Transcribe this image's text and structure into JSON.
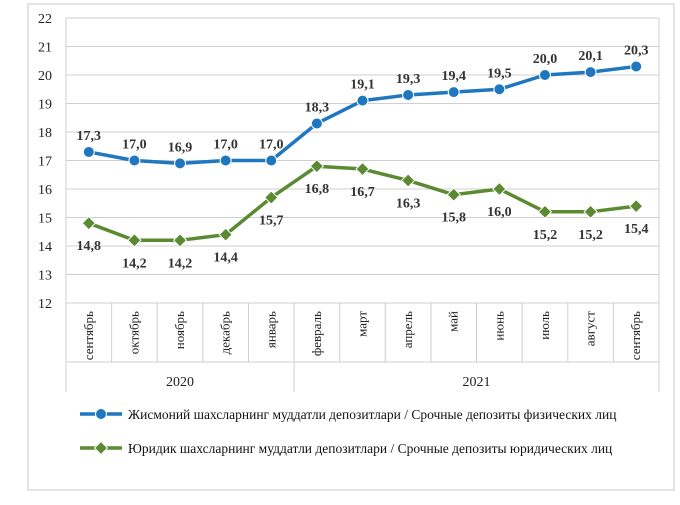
{
  "chart_data": {
    "type": "line",
    "categories": [
      "сентябрь",
      "октябрь",
      "ноябрь",
      "декабрь",
      "январь",
      "февраль",
      "март",
      "апрель",
      "май",
      "июнь",
      "июль",
      "август",
      "сентябрь"
    ],
    "year_groups": [
      {
        "label": "2020",
        "from": 0,
        "to": 4
      },
      {
        "label": "2021",
        "from": 5,
        "to": 12
      }
    ],
    "ylim": [
      12,
      22
    ],
    "yticks": [
      12,
      13,
      14,
      15,
      16,
      17,
      18,
      19,
      20,
      21,
      22
    ],
    "grid": true,
    "legend_position": "bottom",
    "series": [
      {
        "name": "Жисмоний шахсларнинг муддатли депозитлари / Срочные депозиты физических лиц",
        "color": "#1f77c0",
        "marker": "circle",
        "values": [
          17.3,
          17.0,
          16.9,
          17.0,
          17.0,
          18.3,
          19.1,
          19.3,
          19.4,
          19.5,
          20.0,
          20.1,
          20.3
        ],
        "labels": [
          "17,3",
          "17,0",
          "16,9",
          "17,0",
          "17,0",
          "18,3",
          "19,1",
          "19,3",
          "19,4",
          "19,5",
          "20,0",
          "20,1",
          "20,3"
        ]
      },
      {
        "name": "Юридик шахсларнинг муддатли депозитлари / Срочные депозиты юридических лиц",
        "color": "#5a8a32",
        "marker": "diamond",
        "values": [
          14.8,
          14.2,
          14.2,
          14.4,
          15.7,
          16.8,
          16.7,
          16.3,
          15.8,
          16.0,
          15.2,
          15.2,
          15.4
        ],
        "labels": [
          "14,8",
          "14,2",
          "14,2",
          "14,4",
          "15,7",
          "16,8",
          "16,7",
          "16,3",
          "15,8",
          "16,0",
          "15,2",
          "15,2",
          "15,4"
        ]
      }
    ]
  }
}
